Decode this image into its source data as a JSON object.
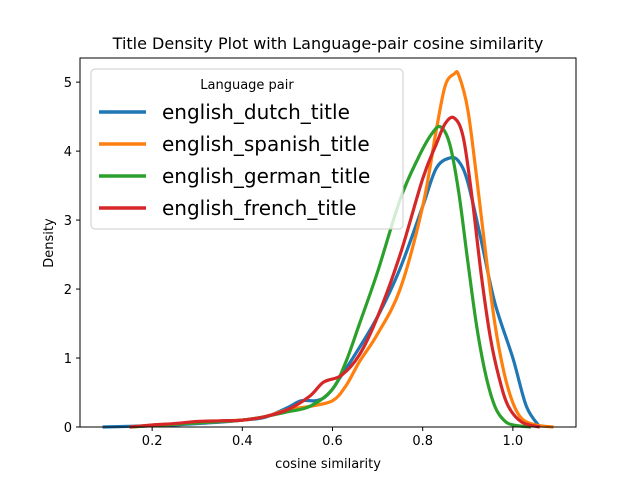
{
  "chart_data": {
    "type": "line",
    "title": "Title Density Plot with Language-pair cosine similarity",
    "xlabel": "cosine similarity",
    "ylabel": "Density",
    "xlim": [
      0.04,
      1.14
    ],
    "ylim": [
      0,
      5.35
    ],
    "xticks": [
      0.2,
      0.4,
      0.6,
      0.8,
      1.0
    ],
    "xtick_labels": [
      "0.2",
      "0.4",
      "0.6",
      "0.8",
      "1.0"
    ],
    "yticks": [
      0,
      1,
      2,
      3,
      4,
      5
    ],
    "ytick_labels": [
      "0",
      "1",
      "2",
      "3",
      "4",
      "5"
    ],
    "grid": false,
    "legend": {
      "title": "Language pair",
      "placement": "upper-left"
    },
    "series": [
      {
        "name": "english_dutch_title",
        "color": "#1f77b4",
        "x": [
          0.09,
          0.15,
          0.2,
          0.25,
          0.3,
          0.35,
          0.4,
          0.45,
          0.5,
          0.53,
          0.56,
          0.58,
          0.6,
          0.62,
          0.65,
          0.7,
          0.75,
          0.8,
          0.83,
          0.86,
          0.88,
          0.9,
          0.93,
          0.96,
          1.0,
          1.03,
          1.06
        ],
        "y": [
          0.0,
          0.01,
          0.02,
          0.03,
          0.05,
          0.07,
          0.1,
          0.14,
          0.28,
          0.38,
          0.38,
          0.42,
          0.55,
          0.75,
          1.05,
          1.6,
          2.3,
          3.2,
          3.75,
          3.9,
          3.85,
          3.55,
          2.7,
          1.8,
          1.0,
          0.3,
          0.0
        ]
      },
      {
        "name": "english_spanish_title",
        "color": "#ff7f0e",
        "x": [
          0.15,
          0.2,
          0.25,
          0.3,
          0.35,
          0.4,
          0.45,
          0.5,
          0.55,
          0.6,
          0.63,
          0.66,
          0.7,
          0.75,
          0.8,
          0.83,
          0.85,
          0.87,
          0.88,
          0.9,
          0.92,
          0.94,
          0.96,
          0.98,
          1.0,
          1.02,
          1.05,
          1.09
        ],
        "y": [
          0.0,
          0.02,
          0.04,
          0.06,
          0.08,
          0.1,
          0.15,
          0.25,
          0.3,
          0.38,
          0.6,
          0.95,
          1.35,
          2.0,
          3.2,
          4.3,
          4.95,
          5.12,
          5.1,
          4.6,
          3.6,
          2.5,
          1.5,
          0.8,
          0.35,
          0.12,
          0.03,
          0.0
        ]
      },
      {
        "name": "english_german_title",
        "color": "#2ca02c",
        "x": [
          0.15,
          0.2,
          0.25,
          0.3,
          0.35,
          0.4,
          0.45,
          0.5,
          0.55,
          0.6,
          0.63,
          0.66,
          0.7,
          0.75,
          0.79,
          0.82,
          0.84,
          0.86,
          0.88,
          0.9,
          0.92,
          0.94,
          0.96,
          0.98,
          1.0,
          1.04
        ],
        "y": [
          0.0,
          0.02,
          0.04,
          0.06,
          0.08,
          0.1,
          0.15,
          0.22,
          0.3,
          0.55,
          0.95,
          1.5,
          2.25,
          3.3,
          3.9,
          4.25,
          4.35,
          4.1,
          3.4,
          2.4,
          1.45,
          0.75,
          0.3,
          0.1,
          0.03,
          0.0
        ]
      },
      {
        "name": "english_french_title",
        "color": "#d62728",
        "x": [
          0.15,
          0.2,
          0.25,
          0.3,
          0.35,
          0.4,
          0.45,
          0.5,
          0.55,
          0.58,
          0.62,
          0.66,
          0.7,
          0.75,
          0.8,
          0.83,
          0.85,
          0.87,
          0.89,
          0.91,
          0.93,
          0.95,
          0.97,
          0.99,
          1.02,
          1.06
        ],
        "y": [
          0.0,
          0.03,
          0.05,
          0.08,
          0.09,
          0.1,
          0.15,
          0.25,
          0.45,
          0.65,
          0.75,
          1.05,
          1.6,
          2.5,
          3.6,
          4.1,
          4.4,
          4.48,
          4.2,
          3.3,
          2.2,
          1.3,
          0.7,
          0.3,
          0.07,
          0.0
        ]
      }
    ]
  }
}
